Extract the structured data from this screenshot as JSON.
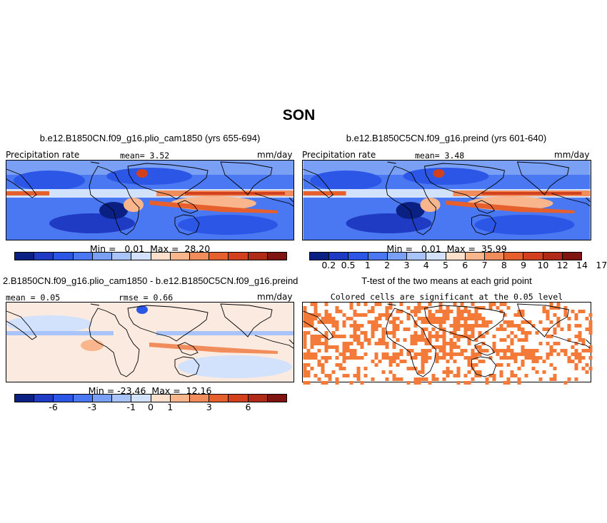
{
  "figure": {
    "title": "SON",
    "colors": {
      "precip": [
        "#0a2183",
        "#1f3bc4",
        "#2c56e6",
        "#4a78f2",
        "#7aa0f6",
        "#a8c4fa",
        "#d2e2fd",
        "#fde0cc",
        "#f9b58c",
        "#f18d5c",
        "#e5602d",
        "#d2401e",
        "#b02a18",
        "#7f1410"
      ],
      "diff": [
        "#0a2183",
        "#1f3bc4",
        "#2c56e6",
        "#4a78f2",
        "#7aa0f6",
        "#a8c4fa",
        "#d2e2fd",
        "#fde0cc",
        "#f9b58c",
        "#f18d5c",
        "#e5602d",
        "#d2401e",
        "#b02a18",
        "#7f1410"
      ],
      "significant": "#f47a3a"
    }
  },
  "panels": [
    {
      "title": "b.e12.B1850CN.f09_g16.plio_cam1850 (yrs 655-694)",
      "left_label": "Precipitation rate",
      "mean_label": "mean=   3.52",
      "units": "mm/day",
      "minmax": "Min =   0.01  Max =  28.20",
      "colorbar_labels": []
    },
    {
      "title": "b.e12.B1850C5CN.f09_g16.preind (yrs 601-640)",
      "left_label": "Precipitation rate",
      "mean_label": "mean=   3.48",
      "units": "mm/day",
      "minmax": "Min =   0.01  Max =  35.99",
      "colorbar_labels": [
        "0.2",
        "0.5",
        "1",
        "2",
        "3",
        "4",
        "5",
        "6",
        "7",
        "8",
        "9",
        "10",
        "12",
        "14",
        "17"
      ]
    },
    {
      "title": "2.B1850CN.f09_g16.plio_cam1850 - b.e12.B1850C5CN.f09_g16.preind",
      "left_label": "mean =  0.05",
      "mid_label": "rmse =   0.66",
      "units": "mm/day",
      "minmax": "Min = -23.46  Max =  12.16",
      "colorbar_labels": [
        "-6",
        "-3",
        "-1",
        "0",
        "1",
        "3",
        "6"
      ]
    },
    {
      "title": "T-test of the two means at each grid point",
      "subtitle": "Colored cells are significant at the 0.05 level"
    }
  ]
}
